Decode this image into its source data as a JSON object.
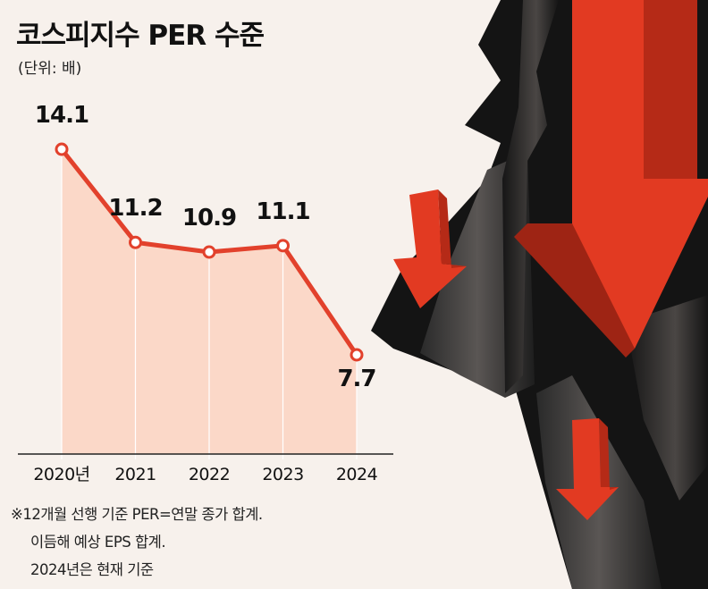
{
  "header": {
    "title": "코스피지수 PER 수준",
    "unit": "(단위: 배)"
  },
  "chart_data": {
    "type": "line",
    "title": "코스피지수 PER 수준",
    "unit": "(단위: 배)",
    "categories": [
      "2020년",
      "2021",
      "2022",
      "2023",
      "2024"
    ],
    "series": [
      {
        "values": [
          14.1,
          11.2,
          10.9,
          11.1,
          7.7
        ]
      }
    ],
    "data_labels": [
      "14.1",
      "11.2",
      "10.9",
      "11.1",
      "7.7"
    ],
    "colors": {
      "line": "#e2412c",
      "area": "#fbd8c8",
      "marker_fill": "#ffffff"
    }
  },
  "notes": [
    "※12개월 선행 기준 PER=연말 종가 합계.",
    "이듬해 예상 EPS 합계.",
    "2024년은 현재 기준"
  ],
  "illustration": {
    "description_icon": "ground-crack-with-falling-red-arrows",
    "arrow_color": "#e23a22",
    "crack_color": "#1a1a1a"
  }
}
